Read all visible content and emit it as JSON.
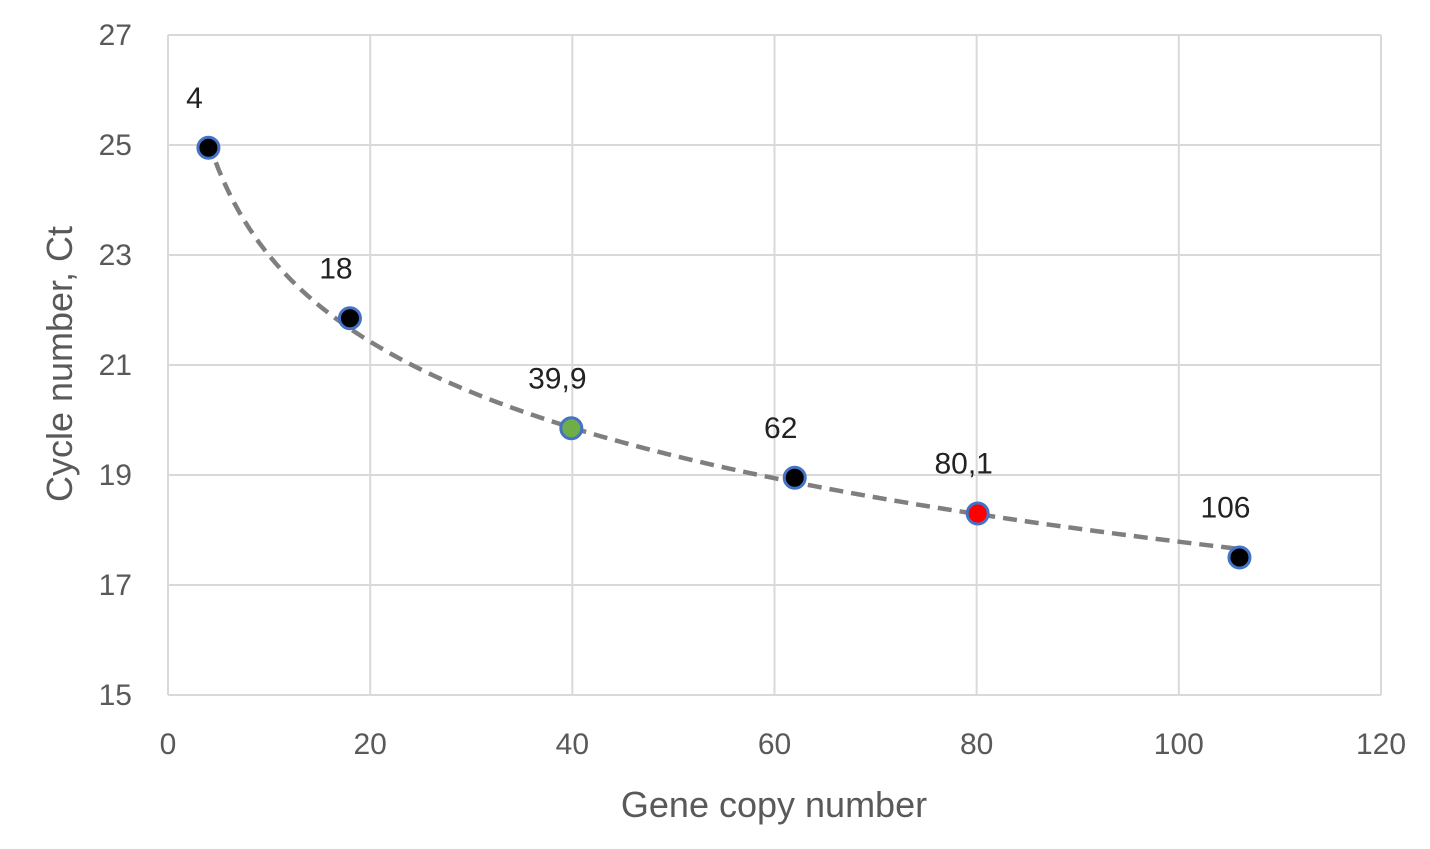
{
  "chart_data": {
    "type": "scatter",
    "title": "",
    "xlabel": "Gene copy number",
    "ylabel": "Cycle number, Ct",
    "xlim": [
      0,
      120
    ],
    "ylim": [
      15,
      27
    ],
    "xticks": [
      0,
      20,
      40,
      60,
      80,
      100,
      120
    ],
    "yticks": [
      15,
      17,
      19,
      21,
      23,
      25,
      27
    ],
    "grid": true,
    "legend": "none",
    "trendline": {
      "style": "dashed",
      "kind": "logarithmic",
      "color": "#7f7f7f"
    },
    "point_outline": "#4472c4",
    "points": [
      {
        "x": 4,
        "y": 24.95,
        "label": "4",
        "color": "#000000"
      },
      {
        "x": 18,
        "y": 21.85,
        "label": "18",
        "color": "#000000"
      },
      {
        "x": 39.9,
        "y": 19.85,
        "label": "39,9",
        "color": "#70ad47"
      },
      {
        "x": 62,
        "y": 18.95,
        "label": "62",
        "color": "#000000"
      },
      {
        "x": 80.1,
        "y": 18.3,
        "label": "80,1",
        "color": "#ff0000"
      },
      {
        "x": 106,
        "y": 17.5,
        "label": "106",
        "color": "#000000"
      }
    ]
  }
}
